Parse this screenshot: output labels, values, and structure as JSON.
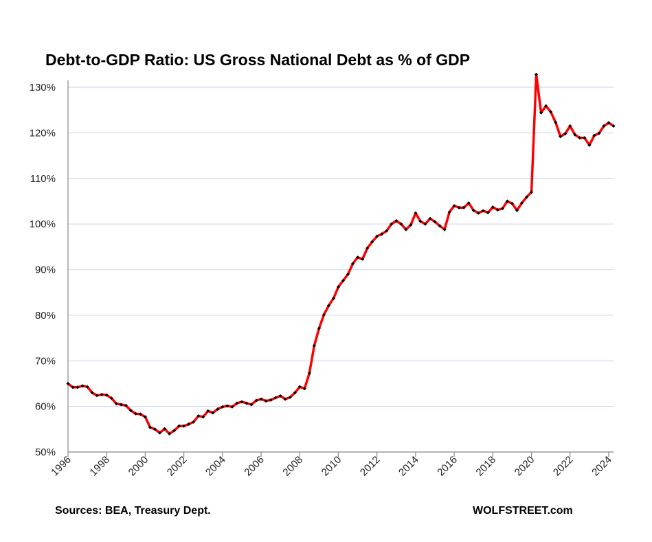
{
  "chart_data": {
    "type": "line",
    "title": "Debt-to-GDP Ratio: US Gross National Debt as % of GDP",
    "xlabel": "",
    "ylabel": "",
    "ylim": [
      50,
      130
    ],
    "xlim": [
      1996,
      2024.25
    ],
    "grid": true,
    "y_ticks": [
      "50%",
      "60%",
      "70%",
      "80%",
      "90%",
      "100%",
      "110%",
      "120%",
      "130%"
    ],
    "y_tick_values": [
      50,
      60,
      70,
      80,
      90,
      100,
      110,
      120,
      130
    ],
    "x_ticks": [
      "1996",
      "1998",
      "2000",
      "2002",
      "2004",
      "2006",
      "2008",
      "2010",
      "2012",
      "2014",
      "2016",
      "2018",
      "2020",
      "2022",
      "2024"
    ],
    "x_start": 1996,
    "x_step": 0.25,
    "series": [
      {
        "name": "Gross National Debt as % of GDP",
        "color": "#ff0000",
        "marker_color": "#000000",
        "values": [
          65.0,
          64.2,
          64.2,
          64.5,
          64.3,
          63.0,
          62.4,
          62.6,
          62.5,
          61.8,
          60.6,
          60.4,
          60.2,
          59.1,
          58.4,
          58.3,
          57.7,
          55.4,
          55.0,
          54.2,
          55.1,
          54.0,
          54.7,
          55.7,
          55.7,
          56.1,
          56.6,
          57.9,
          57.7,
          59.0,
          58.6,
          59.4,
          59.9,
          60.1,
          59.9,
          60.7,
          61.0,
          60.7,
          60.4,
          61.3,
          61.6,
          61.2,
          61.4,
          61.9,
          62.3,
          61.6,
          62.0,
          63.0,
          64.3,
          63.9,
          67.3,
          73.3,
          77.1,
          80.1,
          82.1,
          83.7,
          86.2,
          87.6,
          89.0,
          91.3,
          92.7,
          92.3,
          94.7,
          96.1,
          97.3,
          97.8,
          98.5,
          100.0,
          100.7,
          100.0,
          98.8,
          99.8,
          102.4,
          100.6,
          100.0,
          101.2,
          100.5,
          99.6,
          98.8,
          102.6,
          104.0,
          103.6,
          103.6,
          104.6,
          103.0,
          102.4,
          102.9,
          102.5,
          103.7,
          103.1,
          103.4,
          105.0,
          104.5,
          103.0,
          104.6,
          105.9,
          107.0,
          132.8,
          124.4,
          125.9,
          124.6,
          122.3,
          119.2,
          119.8,
          121.5,
          119.6,
          118.9,
          118.9,
          117.3,
          119.4,
          119.9,
          121.5,
          122.2,
          121.5
        ]
      }
    ]
  },
  "footer": {
    "sources": "Sources: BEA, Treasury Dept.",
    "brand": "WOLFSTREET.com"
  }
}
